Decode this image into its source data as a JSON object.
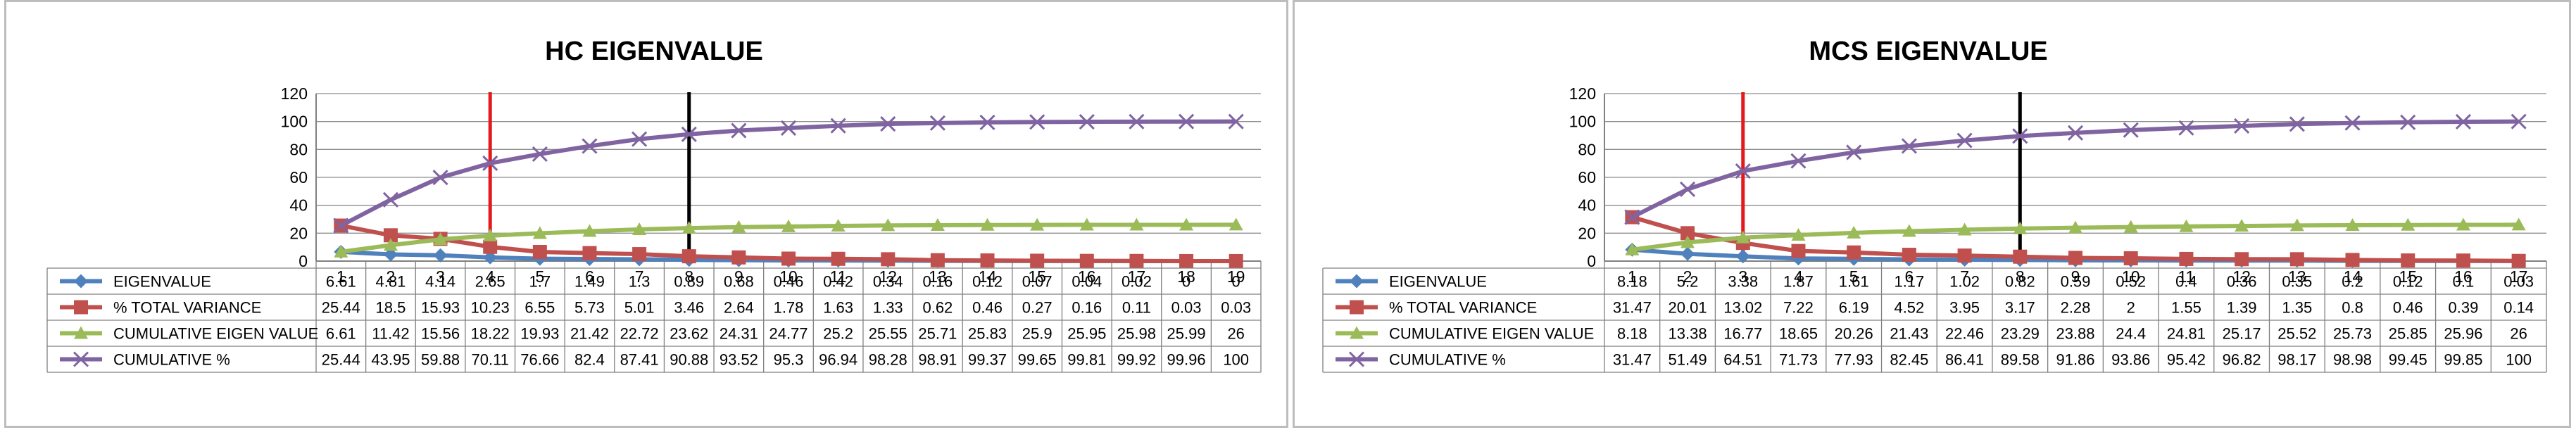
{
  "chart_data": [
    {
      "type": "line",
      "title": "HC EIGENVALUE",
      "categories": [
        "1",
        "2",
        "3",
        "4",
        "5",
        "6",
        "7",
        "8",
        "9",
        "10",
        "11",
        "12",
        "13",
        "14",
        "15",
        "16",
        "17",
        "18",
        "19"
      ],
      "ylim": [
        0,
        120
      ],
      "yticks": [
        0,
        20,
        40,
        60,
        80,
        100,
        120
      ],
      "grid": true,
      "legend": "data-table",
      "markers": {
        "red_line_at": 3.5,
        "black_line_at": 7.5
      },
      "series": [
        {
          "name": "EIGENVALUE",
          "color": "#4F81BD",
          "marker": "diamond",
          "values": [
            6.61,
            4.81,
            4.14,
            2.65,
            1.7,
            1.49,
            1.3,
            0.89,
            0.68,
            0.46,
            0.42,
            0.34,
            0.16,
            0.12,
            0.07,
            0.04,
            0.02,
            0,
            0
          ]
        },
        {
          "name": "% TOTAL VARIANCE",
          "color": "#C0504D",
          "marker": "square",
          "values": [
            25.44,
            18.5,
            15.93,
            10.23,
            6.55,
            5.73,
            5.01,
            3.46,
            2.64,
            1.78,
            1.63,
            1.33,
            0.62,
            0.46,
            0.27,
            0.16,
            0.11,
            0.03,
            0.03
          ]
        },
        {
          "name": "CUMULATIVE EIGEN VALUE",
          "color": "#9BBB59",
          "marker": "triangle",
          "values": [
            6.61,
            11.42,
            15.56,
            18.22,
            19.93,
            21.42,
            22.72,
            23.62,
            24.31,
            24.77,
            25.2,
            25.55,
            25.71,
            25.83,
            25.9,
            25.95,
            25.98,
            25.99,
            26
          ]
        },
        {
          "name": "CUMULATIVE %",
          "color": "#8064A2",
          "marker": "x",
          "values": [
            25.44,
            43.95,
            59.88,
            70.11,
            76.66,
            82.4,
            87.41,
            90.88,
            93.52,
            95.3,
            96.94,
            98.28,
            98.91,
            99.37,
            99.65,
            99.81,
            99.92,
            99.96,
            100
          ]
        }
      ]
    },
    {
      "type": "line",
      "title": "MCS EIGENVALUE",
      "categories": [
        "1",
        "2",
        "3",
        "4",
        "5",
        "6",
        "7",
        "8",
        "9",
        "10",
        "11",
        "12",
        "13",
        "14",
        "15",
        "16",
        "17"
      ],
      "ylim": [
        0,
        120
      ],
      "yticks": [
        0,
        20,
        40,
        60,
        80,
        100,
        120
      ],
      "grid": true,
      "legend": "data-table",
      "markers": {
        "red_line_at": 2.5,
        "black_line_at": 7.5
      },
      "series": [
        {
          "name": "EIGENVALUE",
          "color": "#4F81BD",
          "marker": "diamond",
          "values": [
            8.18,
            5.2,
            3.38,
            1.87,
            1.61,
            1.17,
            1.02,
            0.82,
            0.59,
            0.52,
            0.4,
            0.36,
            0.35,
            0.2,
            0.12,
            0.1,
            0.03
          ]
        },
        {
          "name": "% TOTAL VARIANCE",
          "color": "#C0504D",
          "marker": "square",
          "values": [
            31.47,
            20.01,
            13.02,
            7.22,
            6.19,
            4.52,
            3.95,
            3.17,
            2.28,
            2,
            1.55,
            1.39,
            1.35,
            0.8,
            0.46,
            0.39,
            0.14
          ]
        },
        {
          "name": "CUMULATIVE EIGEN VALUE",
          "color": "#9BBB59",
          "marker": "triangle",
          "values": [
            8.18,
            13.38,
            16.77,
            18.65,
            20.26,
            21.43,
            22.46,
            23.29,
            23.88,
            24.4,
            24.81,
            25.17,
            25.52,
            25.73,
            25.85,
            25.96,
            26
          ]
        },
        {
          "name": "CUMULATIVE %",
          "color": "#8064A2",
          "marker": "x",
          "values": [
            31.47,
            51.49,
            64.51,
            71.73,
            77.93,
            82.45,
            86.41,
            89.58,
            91.86,
            93.86,
            95.42,
            96.82,
            98.17,
            98.98,
            99.45,
            99.85,
            100
          ]
        }
      ]
    }
  ]
}
